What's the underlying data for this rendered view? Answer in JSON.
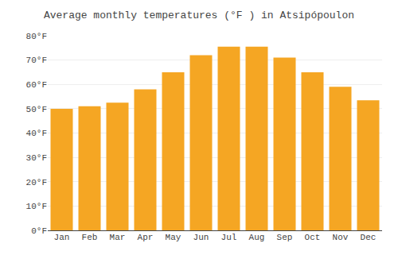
{
  "chart_data": {
    "type": "bar",
    "title": "Average monthly temperatures (°F ) in Atsipópoulon",
    "categories": [
      "Jan",
      "Feb",
      "Mar",
      "Apr",
      "May",
      "Jun",
      "Jul",
      "Aug",
      "Sep",
      "Oct",
      "Nov",
      "Dec"
    ],
    "values": [
      50,
      51,
      52.5,
      58,
      65,
      72,
      75.5,
      75.5,
      71,
      65,
      59,
      53.5
    ],
    "color": "#F5A623",
    "ylim": [
      0,
      80
    ],
    "yticks": [
      {
        "value": 0,
        "label": "0°F"
      },
      {
        "value": 10,
        "label": "10°F"
      },
      {
        "value": 20,
        "label": "20°F"
      },
      {
        "value": 30,
        "label": "30°F"
      },
      {
        "value": 40,
        "label": "40°F"
      },
      {
        "value": 50,
        "label": "50°F"
      },
      {
        "value": 60,
        "label": "60°F"
      },
      {
        "value": 70,
        "label": "70°F"
      },
      {
        "value": 80,
        "label": "80°F"
      }
    ],
    "grid": true
  }
}
